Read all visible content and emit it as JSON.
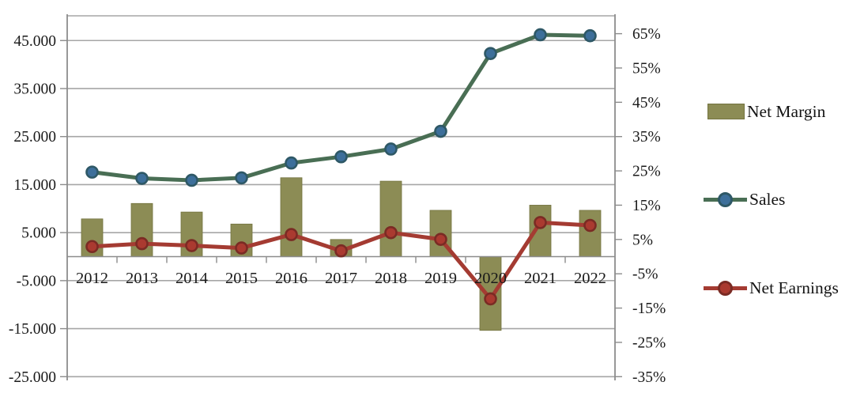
{
  "chart_data": {
    "type": "combo-bar-line",
    "title": "",
    "categories": [
      "2012",
      "2013",
      "2014",
      "2015",
      "2016",
      "2017",
      "2018",
      "2019",
      "2020",
      "2021",
      "2022"
    ],
    "series": [
      {
        "name": "Net Margin",
        "type": "bar",
        "axis": "right",
        "unit": "percent",
        "values": [
          11,
          15.5,
          13,
          9.5,
          23,
          5,
          22,
          13.5,
          -21.5,
          15,
          13.5
        ],
        "color": "#8C8C55",
        "border_color": "#73733F"
      },
      {
        "name": "Sales",
        "type": "line",
        "axis": "left",
        "values": [
          17600,
          16300,
          15900,
          16400,
          19500,
          20800,
          22400,
          26100,
          42300,
          46200,
          46000
        ],
        "line_color": "#496E54",
        "marker_color": "#3D6F9A",
        "marker_border": "#2E5866"
      },
      {
        "name": "Net Earnings",
        "type": "line",
        "axis": "left",
        "values": [
          2100,
          2700,
          2300,
          1800,
          4600,
          1200,
          5000,
          3600,
          -8800,
          7100,
          6500
        ],
        "line_color": "#A43B32",
        "marker_color": "#AA3A30",
        "marker_border": "#7A2B24"
      }
    ],
    "axes": {
      "left": {
        "labels": [
          "45.000",
          "35.000",
          "25.000",
          "15.000",
          "5.000",
          "-5.000",
          "-15.000",
          "-25.000"
        ],
        "tick_values": [
          45000,
          35000,
          25000,
          15000,
          5000,
          -5000,
          -15000,
          -25000
        ],
        "min": -25000,
        "max": 50000
      },
      "right": {
        "labels": [
          "65%",
          "55%",
          "45%",
          "35%",
          "25%",
          "15%",
          "5%",
          "-5%",
          "-15%",
          "-25%",
          "-35%"
        ],
        "tick_values": [
          65,
          55,
          45,
          35,
          25,
          15,
          5,
          -5,
          -15,
          -25,
          -35
        ],
        "min": -35,
        "max": 70
      },
      "category_axis_at_zero": true
    },
    "legend": {
      "position": "right",
      "entries": [
        "Net Margin",
        "Sales",
        "Net Earnings"
      ]
    },
    "grid": {
      "color": "#A6A6A6",
      "axis_color": "#8C8C8C",
      "text_color": "#1A1A1A"
    },
    "background": "#FFFFFF"
  }
}
